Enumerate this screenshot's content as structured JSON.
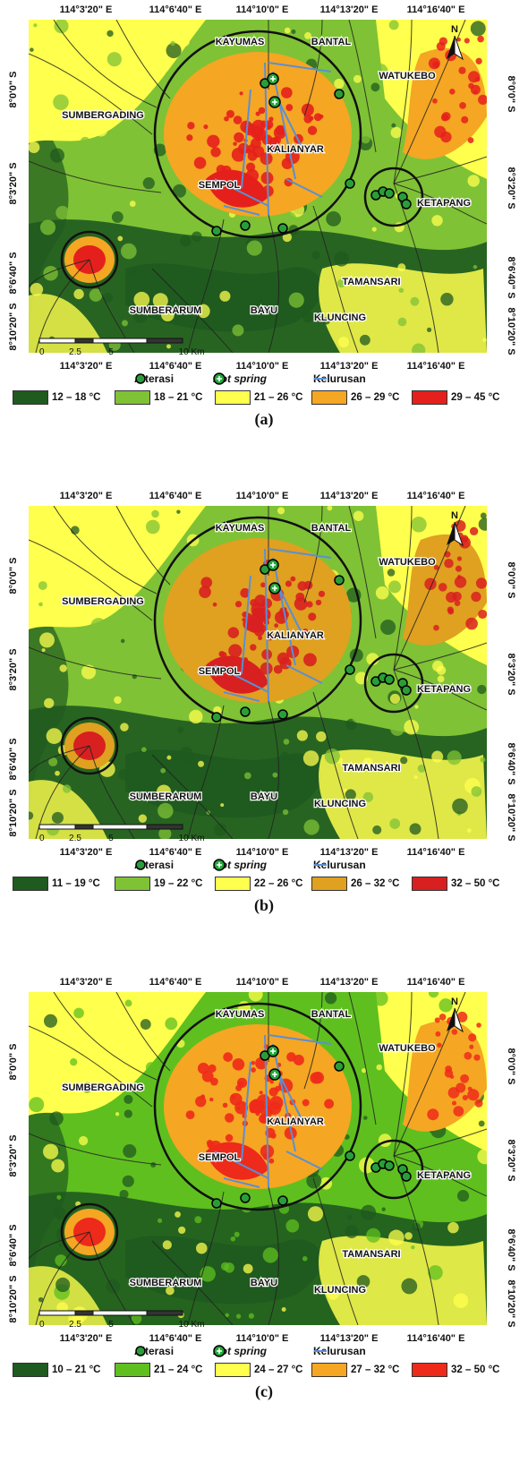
{
  "panels": [
    {
      "id": "a",
      "label": "(a)",
      "classes": [
        {
          "text": "12 – 18 °C",
          "color": "#1f5a1f"
        },
        {
          "text": "18 – 21 °C",
          "color": "#7fc235"
        },
        {
          "text": "21 – 26 °C",
          "color": "#ffff4d"
        },
        {
          "text": "26 – 29 °C",
          "color": "#f5a623"
        },
        {
          "text": "29 – 45 °C",
          "color": "#e5201c"
        }
      ]
    },
    {
      "id": "b",
      "label": "(b)",
      "classes": [
        {
          "text": "11 – 19 °C",
          "color": "#1f5a1f"
        },
        {
          "text": "19 – 22 °C",
          "color": "#7fc235"
        },
        {
          "text": "22 – 26 °C",
          "color": "#ffff4d"
        },
        {
          "text": "26 – 32 °C",
          "color": "#e0a020"
        },
        {
          "text": "32 – 50 °C",
          "color": "#d82020"
        }
      ]
    },
    {
      "id": "c",
      "label": "(c)",
      "classes": [
        {
          "text": "10 – 21 °C",
          "color": "#1f5a1f"
        },
        {
          "text": "21 – 24 °C",
          "color": "#5fbf1f"
        },
        {
          "text": "24 – 27 °C",
          "color": "#ffff4d"
        },
        {
          "text": "27 – 32 °C",
          "color": "#f5a623"
        },
        {
          "text": "32 – 50 °C",
          "color": "#ee2a1a"
        }
      ]
    }
  ],
  "axes": {
    "lon_ticks": [
      "114°3'20\" E",
      "114°6'40\" E",
      "114°10'0\" E",
      "114°13'20\" E",
      "114°16'40\" E"
    ],
    "lat_ticks_left": [
      "8°0'0\" S",
      "8°3'20\" S",
      "8°6'40\" S",
      "8°10'20\" S"
    ],
    "lat_ticks_right": [
      "8°0'0\" S",
      "8°3'20\" S",
      "8°6'40\" S",
      "8°10'20\" S"
    ]
  },
  "places": {
    "kayumas": "KAYUMAS",
    "bantal": "BANTAL",
    "watukebo": "WATUKEBO",
    "sumbergading": "SUMBERGADING",
    "kalianyar": "KALIANYAR",
    "sempol": "SEMPOL",
    "ketapang": "KETAPANG",
    "tamansari": "TAMANSARI",
    "sumberarum": "SUMBERARUM",
    "bayu": "BAYU",
    "kluncing": "KLUNCING"
  },
  "symbols": {
    "alterasi": "Alterasi",
    "hotspring": "Hot spring",
    "kelurusan": "Kelurusan"
  },
  "scale_bar": {
    "labels": [
      "0",
      "2.5",
      "5",
      "10 Km"
    ]
  },
  "north_label": "N",
  "colors": {
    "alterasi": "#2a9d3a",
    "hotspring": "#22a83a",
    "kelurusan": "#5b8fd4",
    "river": "#222222"
  }
}
